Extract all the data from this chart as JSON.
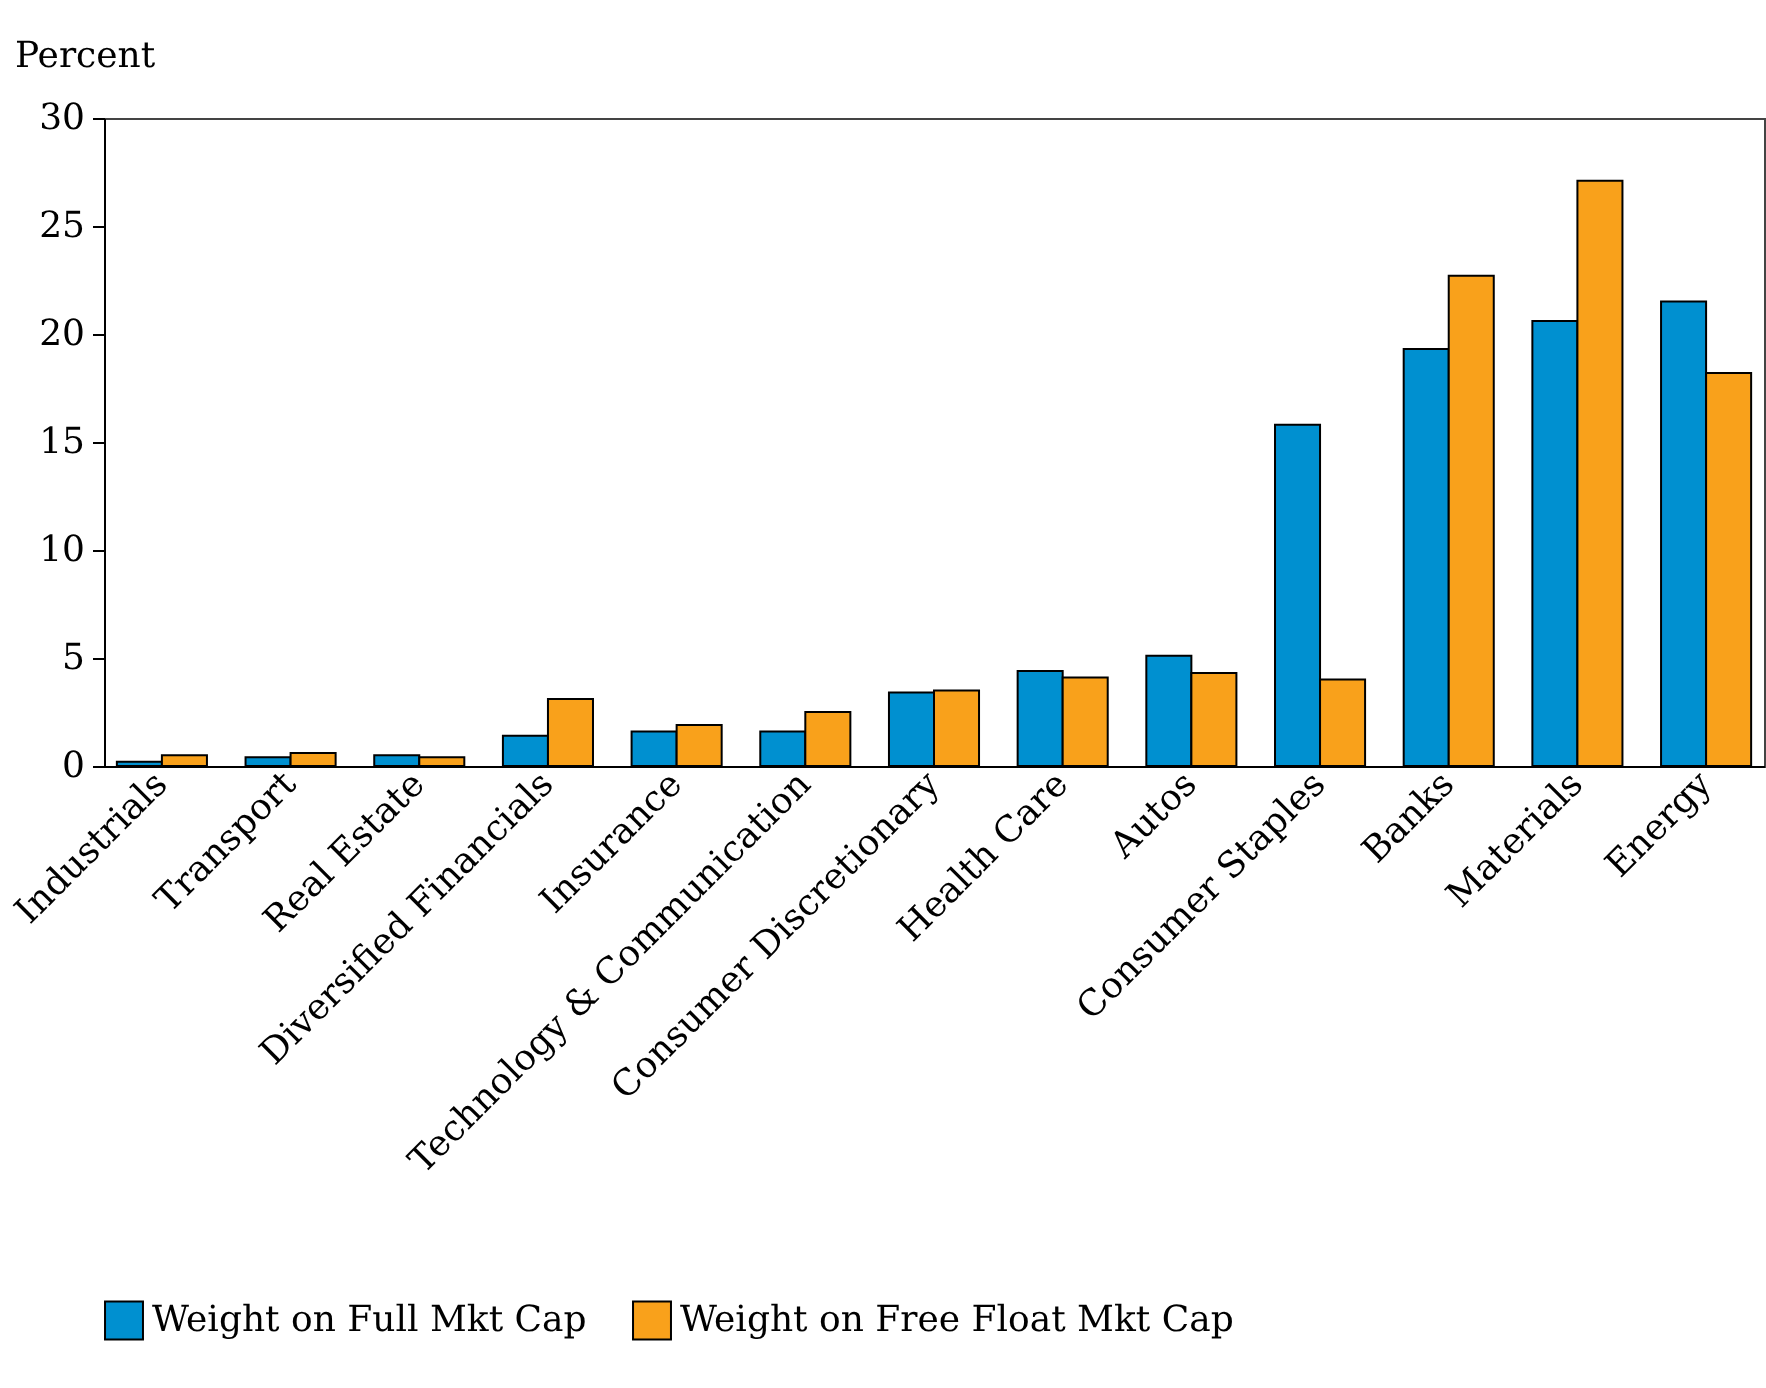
{
  "chart_data": {
    "type": "bar",
    "ylabel": "Percent",
    "categories": [
      "Industrials",
      "Transport",
      "Real Estate",
      "Diversified Financials",
      "Insurance",
      "Technology & Communication",
      "Consumer Discretionary",
      "Health Care",
      "Autos",
      "Consumer Staples",
      "Banks",
      "Materials",
      "Energy"
    ],
    "series": [
      {
        "name": "Weight on Full Mkt Cap",
        "color": "#0090d0",
        "values": [
          0.2,
          0.4,
          0.5,
          1.4,
          1.6,
          1.6,
          3.4,
          4.4,
          5.1,
          15.8,
          19.3,
          20.6,
          21.5
        ]
      },
      {
        "name": "Weight on Free Float Mkt Cap",
        "color": "#f9a11b",
        "values": [
          0.5,
          0.6,
          0.4,
          3.1,
          1.9,
          2.5,
          3.5,
          4.1,
          4.3,
          4.0,
          22.7,
          27.1,
          18.2
        ]
      }
    ],
    "ylim": [
      0,
      30
    ],
    "yticks": [
      0,
      5,
      10,
      15,
      20,
      25,
      30
    ],
    "grid": false,
    "legend": "bottom"
  }
}
